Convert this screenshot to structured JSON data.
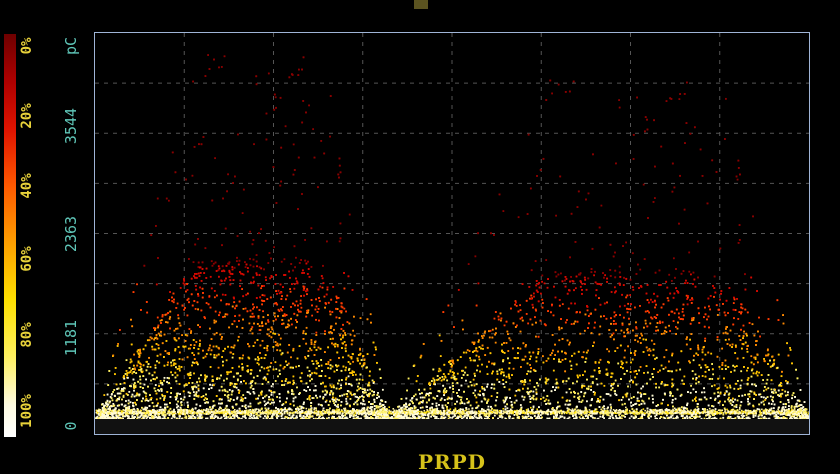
{
  "chart_data": {
    "type": "heatmap",
    "title": "PRPD",
    "ylabel": "pC",
    "ylim": [
      0,
      4725
    ],
    "yticks": [
      "0",
      "1181",
      "2363",
      "3544"
    ],
    "xlim": [
      0,
      360
    ],
    "grid": true,
    "colorbar": {
      "labels": [
        "0%",
        "20%",
        "40%",
        "60%",
        "80%",
        "100%"
      ],
      "colors": [
        "#6e0000",
        "#e01400",
        "#ff7a00",
        "#ffe000",
        "#fff3a0",
        "#ffffff"
      ]
    },
    "clusters": [
      {
        "phase_start": 0,
        "phase_end": 148,
        "peak_phase": 55,
        "peak_pc": 1720
      },
      {
        "phase_start": 148,
        "phase_end": 360,
        "peak_phase": 235,
        "peak_pc": 1600
      }
    ]
  },
  "colors": {
    "background": "#000000",
    "axis_text": "#5fc6b8",
    "label_text": "#e8d23a",
    "frame": "#9fb4d6"
  }
}
